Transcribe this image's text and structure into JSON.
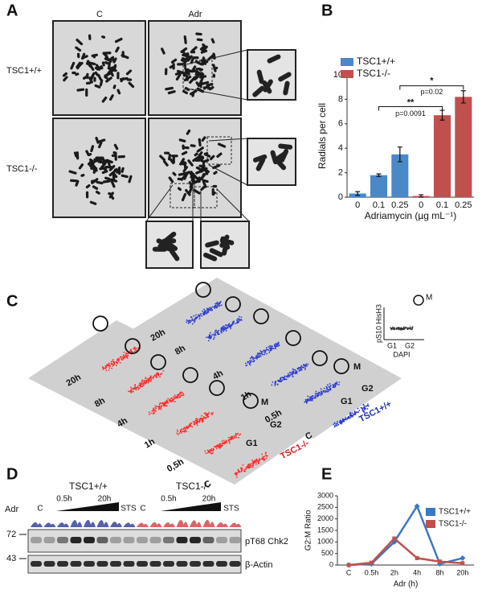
{
  "panels": {
    "a": {
      "label": "A",
      "columns": [
        "C",
        "Adr"
      ],
      "rows": [
        "TSC1+/+",
        "TSC1-/-"
      ]
    },
    "b": {
      "label": "B"
    },
    "c": {
      "label": "C",
      "red_times": [
        "20h",
        "8h",
        "4h",
        "1h",
        "0,5h",
        "C"
      ],
      "blue_times": [
        "20h",
        "8h",
        "4h",
        "1h",
        "0.5h",
        "C"
      ],
      "phases": [
        "M",
        "G2",
        "G1"
      ],
      "red_name": "TSC1-/-",
      "blue_name": "TSC1+/+",
      "inset": {
        "y_label": "pS10 HisH3",
        "x_label": "DAPI",
        "ticks": [
          "G1",
          "G2"
        ],
        "gate": "M"
      }
    },
    "d": {
      "label": "D",
      "groups": [
        "TSC1+/+",
        "TSC1-/-"
      ],
      "row_label": "Adr",
      "lanes": [
        "C",
        "0.5h",
        "20h",
        "STS",
        "C",
        "0.5h",
        "20h",
        "STS"
      ],
      "markers": [
        "72",
        "43"
      ],
      "bands": [
        "pT68 Chk2",
        "β-Actin"
      ]
    },
    "e": {
      "label": "E"
    }
  },
  "chart_data": [
    {
      "type": "bar",
      "y_label": "Radials per cell",
      "x_label": "Adriamycin (µg mL⁻¹)",
      "categories": [
        "0",
        "0.1",
        "0.25",
        "0",
        "0.1",
        "0.25"
      ],
      "series": [
        {
          "name": "TSC1+/+",
          "color": "#4a88c8",
          "values": [
            0.3,
            1.8,
            3.5,
            null,
            null,
            null
          ],
          "errors": [
            0.15,
            0.1,
            0.6,
            null,
            null,
            null
          ]
        },
        {
          "name": "TSC1-/-",
          "color": "#c0504d",
          "values": [
            null,
            null,
            null,
            0.1,
            6.7,
            8.2
          ],
          "errors": [
            null,
            null,
            null,
            0.1,
            0.4,
            0.5
          ]
        }
      ],
      "ylim": [
        0,
        10
      ],
      "yticks": [
        0,
        2,
        4,
        6,
        8,
        10
      ],
      "annotations": [
        "**",
        "p=0.0091",
        "*",
        "p=0.02"
      ]
    },
    {
      "type": "line",
      "y_label": "G2:M Ratio",
      "x_label": "Adr (h)",
      "categories": [
        "C",
        "0.5h",
        "2h",
        "4h",
        "8h",
        "20h"
      ],
      "series": [
        {
          "name": "TSC1+/+",
          "color": "#3b78c4",
          "values": [
            0,
            50,
            1000,
            2550,
            50,
            300
          ]
        },
        {
          "name": "TSC1-/-",
          "color": "#c0504d",
          "values": [
            0,
            100,
            1150,
            300,
            150,
            80
          ]
        }
      ],
      "ylim": [
        0,
        3000
      ],
      "yticks": [
        0,
        500,
        1000,
        1500,
        2000,
        2500,
        3000
      ]
    }
  ]
}
